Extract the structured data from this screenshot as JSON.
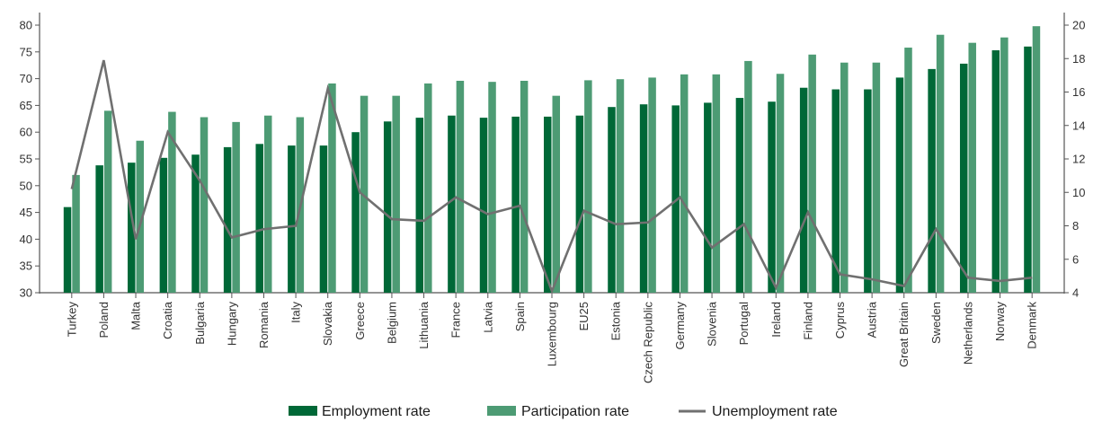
{
  "chart_data": {
    "type": "bar",
    "categories": [
      "Turkey",
      "Poland",
      "Malta",
      "Croatia",
      "Bulgaria",
      "Hungary",
      "Romania",
      "Italy",
      "Slovakia",
      "Greece",
      "Belgium",
      "Lithuania",
      "France",
      "Latvia",
      "Spain",
      "Luxembourg",
      "EU25",
      "Estonia",
      "Czech Republic",
      "Germany",
      "Slovenia",
      "Portugal",
      "Ireland",
      "Finland",
      "Cyprus",
      "Austria",
      "Great Britain",
      "Sweden",
      "Netherlands",
      "Norway",
      "Denmark"
    ],
    "series": [
      {
        "name": "Employment rate",
        "kind": "bar",
        "axis": "left",
        "color": "#006837",
        "values": [
          46,
          53.8,
          54.3,
          55.2,
          55.8,
          57.2,
          57.8,
          57.5,
          57.5,
          60,
          62,
          62.7,
          63.1,
          62.7,
          62.9,
          62.9,
          63.1,
          64.7,
          65.2,
          65,
          65.5,
          66.4,
          65.7,
          68.3,
          68,
          68,
          70.2,
          71.8,
          72.8,
          75.3,
          76
        ]
      },
      {
        "name": "Participation rate",
        "kind": "bar",
        "axis": "left",
        "color": "#4d9b74",
        "values": [
          52,
          64,
          58.4,
          63.8,
          62.8,
          61.9,
          63.1,
          62.8,
          69.1,
          66.8,
          66.8,
          69.1,
          69.6,
          69.4,
          69.6,
          66.8,
          69.7,
          69.9,
          70.2,
          70.8,
          70.8,
          73.3,
          70.9,
          74.5,
          73,
          73,
          75.8,
          78.2,
          76.7,
          77.7,
          79.8
        ]
      },
      {
        "name": "Unemployment rate",
        "kind": "line",
        "axis": "right",
        "color": "#707070",
        "values": [
          10.2,
          17.9,
          7.2,
          13.6,
          10.7,
          7.3,
          7.8,
          8,
          16.2,
          10,
          8.4,
          8.3,
          9.7,
          8.7,
          9.2,
          4.1,
          8.9,
          8.1,
          8.2,
          9.7,
          6.7,
          8.1,
          4.3,
          8.8,
          5.1,
          4.8,
          4.4,
          7.8,
          4.9,
          4.7,
          4.9
        ]
      }
    ],
    "yaxis_left": {
      "ylim": [
        30,
        80
      ],
      "ticks": [
        30,
        35,
        40,
        45,
        50,
        55,
        60,
        65,
        70,
        75,
        80
      ]
    },
    "yaxis_right": {
      "ylim": [
        4,
        20
      ],
      "ticks": [
        4,
        6,
        8,
        10,
        12,
        14,
        16,
        18,
        20
      ]
    },
    "grid": false,
    "legend_position": "bottom-center",
    "title": "",
    "xlabel": "",
    "ylabel": ""
  }
}
